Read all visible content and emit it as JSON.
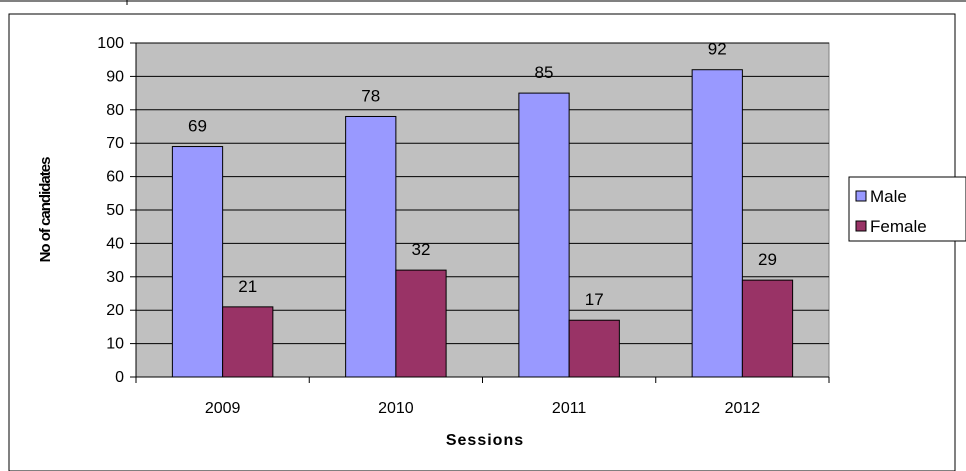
{
  "chart_data": {
    "type": "bar",
    "categories": [
      "2009",
      "2010",
      "2011",
      "2012"
    ],
    "series": [
      {
        "name": "Male",
        "values": [
          69,
          78,
          85,
          92
        ],
        "color": "#9999ff"
      },
      {
        "name": "Female",
        "values": [
          21,
          32,
          17,
          29
        ],
        "color": "#993366"
      }
    ],
    "xlabel": "Sessions",
    "ylabel": "No of candidates",
    "ylim": [
      0,
      100
    ],
    "yticks": [
      0,
      10,
      20,
      30,
      40,
      50,
      60,
      70,
      80,
      90,
      100
    ],
    "grid": true,
    "legend": "right",
    "plot_background": "#c0c0c0"
  }
}
